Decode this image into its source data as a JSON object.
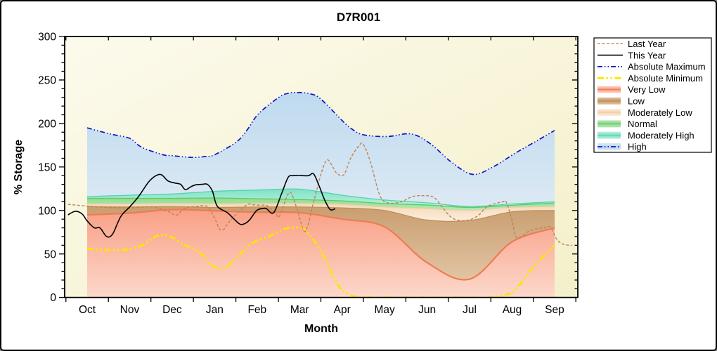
{
  "title": "D7R001",
  "axes": {
    "x_label": "Month",
    "y_label": "% Storage"
  },
  "chart_data": {
    "type": "area",
    "title": "D7R001",
    "xlabel": "Month",
    "ylabel": "% Storage",
    "x_categories": [
      "Oct",
      "Nov",
      "Dec",
      "Jan",
      "Feb",
      "Mar",
      "Apr",
      "May",
      "Jun",
      "Jul",
      "Aug",
      "Sep"
    ],
    "ylim": [
      0,
      300
    ],
    "y_major_ticks": [
      0,
      50,
      100,
      150,
      200,
      250,
      300
    ],
    "y_minor_step": 10,
    "grid": false,
    "legend_position": "top-right",
    "plot_bg_colors": [
      "#fcfaec",
      "#f4f0ca"
    ],
    "bands": [
      {
        "name": "Very Low",
        "edge": "#ee7c54",
        "top_color": "#f9a086",
        "bottom_color": "#fcd8cb",
        "edge_width": 2.2,
        "values": [
          95,
          97,
          101,
          99.5,
          98,
          97.5,
          90,
          81,
          40,
          21,
          64,
          80
        ]
      },
      {
        "name": "Low",
        "edge": "#bb8d58",
        "top_color": "#c99e70",
        "bottom_color": "#e2c5a4",
        "edge_width": 1.2,
        "values": [
          104.5,
          104,
          104.5,
          103.5,
          104,
          104,
          103,
          100,
          89,
          88.5,
          98.5,
          100
        ]
      },
      {
        "name": "Moderately Low",
        "edge": "#eeceaa",
        "top_color": "#f6d8b8",
        "bottom_color": "#fbeedd",
        "edge_width": 1.2,
        "values": [
          107.6,
          107.5,
          108,
          107.7,
          108,
          108,
          107,
          104,
          102,
          100,
          103.5,
          104.3
        ]
      },
      {
        "name": "Normal",
        "edge": "#5fc95f",
        "top_color": "#90dc92",
        "bottom_color": "#b6e9b2",
        "edge_width": 1.3,
        "values": [
          114,
          114,
          114,
          114.4,
          113.5,
          112.5,
          111,
          108,
          106.3,
          103.5,
          106,
          108.6
        ]
      },
      {
        "name": "Moderately High",
        "edge": "#54d2b0",
        "top_color": "#7fe2c4",
        "bottom_color": "#bef1e0",
        "edge_width": 1.3,
        "values": [
          116,
          117.5,
          119,
          122,
          123.5,
          124.5,
          117.5,
          112,
          108.8,
          104.5,
          107.5,
          110
        ]
      },
      {
        "name": "High",
        "edge": null,
        "top_color": "#bedaef",
        "bottom_color": "#dce9f4",
        "edge_width": 0,
        "upper_series": "absolute_maximum"
      }
    ],
    "series": {
      "absolute_maximum": {
        "name": "Absolute Maximum",
        "color": "#1414cc",
        "width": 1.7,
        "dash": "7 3 1.5 3 1.5 3",
        "x": [
          0,
          0.3,
          0.63,
          1,
          1.29,
          1.79,
          2,
          2.45,
          2.78,
          3,
          3.52,
          3.77,
          4.03,
          4.51,
          4.76,
          5.01,
          5.26,
          5.5,
          6.05,
          6.25,
          6.5,
          7.06,
          7.62,
          8.07,
          8.56,
          9.07,
          9.55,
          10.08,
          10.58,
          11
        ],
        "y": [
          195,
          191,
          187,
          183,
          172.5,
          164,
          163,
          161,
          162,
          164,
          179,
          193,
          211,
          230,
          235,
          235.5,
          234,
          228,
          201,
          193,
          187,
          185,
          188,
          177,
          156,
          141.5,
          150,
          166,
          180,
          192
        ]
      },
      "absolute_minimum": {
        "name": "Absolute Minimum",
        "color": "#ffe405",
        "width": 3,
        "dash": "9 3.5 2.5 3.5 2.5 3.5",
        "x": [
          0,
          0.3,
          0.63,
          1,
          1.29,
          1.54,
          1.74,
          2,
          2.25,
          2.45,
          2.69,
          2.86,
          3.11,
          3.31,
          3.6,
          3.85,
          4.03,
          4.27,
          4.51,
          4.76,
          5.06,
          5.17,
          5.42,
          5.67,
          5.92,
          6.17,
          6.41,
          6.61,
          7,
          7.5,
          8,
          8.5,
          9,
          9.5,
          9.97,
          10.17,
          10.42,
          10.71,
          11
        ],
        "y": [
          56,
          55,
          54.5,
          55.5,
          60,
          68,
          72,
          69,
          61,
          57.5,
          50,
          40,
          32.5,
          36,
          50,
          61,
          66,
          70,
          76,
          80,
          80,
          75,
          60,
          37,
          13,
          3,
          0.5,
          0,
          0,
          0,
          0,
          0,
          0,
          0,
          5,
          14,
          30,
          46,
          60
        ]
      },
      "last_year": {
        "name": "Last Year",
        "color": "#bf8351",
        "width": 1.4,
        "dash": "4 2.5",
        "x": [
          -0.45,
          0,
          0.46,
          1,
          1.54,
          1.95,
          2.1,
          2.3,
          2.56,
          2.83,
          3.01,
          3.11,
          3.21,
          3.36,
          3.74,
          3.9,
          4.07,
          4.23,
          4.43,
          4.52,
          4.7,
          4.8,
          4.95,
          5.13,
          5.33,
          5.51,
          5.64,
          5.76,
          5.87,
          6.04,
          6.2,
          6.39,
          6.5,
          6.67,
          6.88,
          7.06,
          7.25,
          7.44,
          7.66,
          7.91,
          8.16,
          8.37,
          8.57,
          8.77,
          8.98,
          9.2,
          9.4,
          9.61,
          9.79,
          9.86,
          9.99,
          10.09,
          10.22,
          10.39,
          10.59,
          10.75,
          10.9,
          11.05,
          11.21,
          11.41
        ],
        "y": [
          107,
          105,
          103.5,
          103,
          104,
          98,
          94.5,
          102.5,
          104.5,
          104.5,
          90,
          79,
          78,
          88,
          106,
          106.5,
          106,
          105.5,
          97,
          93,
          116,
          120,
          100,
          76,
          110,
          143,
          158,
          152,
          143,
          141,
          160,
          174,
          176,
          155,
          118,
          109,
          108.5,
          111,
          116,
          117,
          115,
          103,
          92,
          88.5,
          89,
          94,
          104,
          108,
          110,
          110,
          90,
          70,
          70,
          76,
          79,
          80,
          81,
          67,
          61,
          60
        ]
      },
      "this_year": {
        "name": "This Year",
        "color": "#000000",
        "width": 1.6,
        "dash": null,
        "x": [
          -0.45,
          -0.28,
          -0.12,
          0,
          0.17,
          0.3,
          0.46,
          0.6,
          0.79,
          1,
          1.21,
          1.45,
          1.62,
          1.75,
          1.9,
          2.07,
          2.2,
          2.31,
          2.45,
          2.56,
          2.7,
          2.83,
          2.95,
          3.06,
          3.31,
          3.57,
          3.69,
          3.82,
          3.99,
          4.13,
          4.22,
          4.39,
          4.58,
          4.73,
          4.85,
          5.05,
          5.21,
          5.33,
          5.46,
          5.59,
          5.72,
          5.84
        ],
        "y": [
          95,
          99,
          96,
          88,
          80,
          80,
          70,
          73,
          93,
          104,
          116,
          133,
          140,
          141,
          134,
          131.5,
          130,
          124,
          127.5,
          129.5,
          130,
          130,
          122,
          105,
          97,
          85,
          84.5,
          89,
          100,
          102.3,
          102,
          97.5,
          120,
          138,
          140,
          140,
          140,
          142,
          128,
          112,
          101,
          102
        ]
      }
    }
  },
  "legend": {
    "items": [
      {
        "label": "Last Year",
        "type": "line",
        "ref": "last_year"
      },
      {
        "label": "This Year",
        "type": "line",
        "ref": "this_year"
      },
      {
        "label": "Absolute Maximum",
        "type": "line",
        "ref": "absolute_maximum"
      },
      {
        "label": "Absolute Minimum",
        "type": "line",
        "ref": "absolute_minimum"
      },
      {
        "label": "Very Low",
        "type": "band",
        "band": 0
      },
      {
        "label": "Low",
        "type": "band",
        "band": 1
      },
      {
        "label": "Moderately Low",
        "type": "band",
        "band": 2
      },
      {
        "label": "Normal",
        "type": "band",
        "band": 3
      },
      {
        "label": "Moderately High",
        "type": "band",
        "band": 4
      },
      {
        "label": "High",
        "type": "band_line",
        "band": 5,
        "ref": "absolute_maximum"
      }
    ]
  }
}
